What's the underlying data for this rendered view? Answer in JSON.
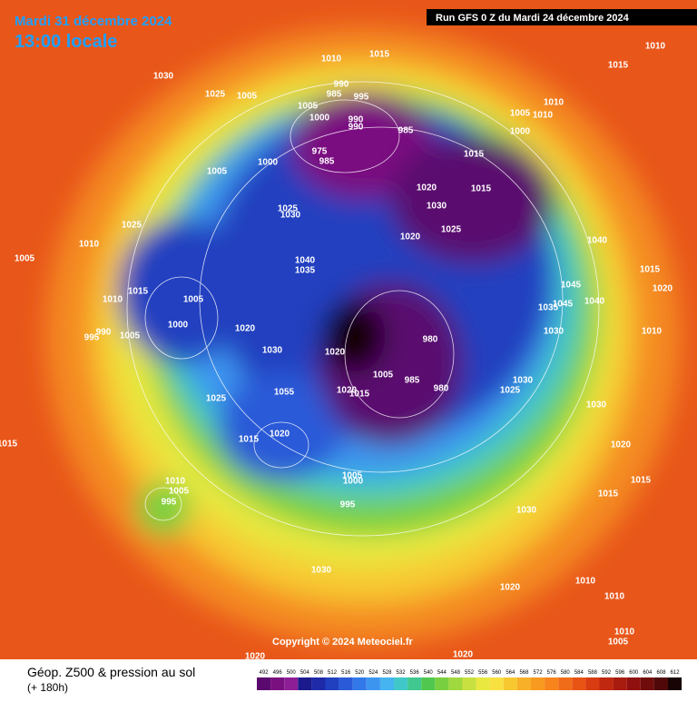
{
  "header": {
    "date": "Mardi 31 décembre 2024",
    "time": "13:00 locale",
    "run": "Run GFS 0 Z du Mardi 24 décembre 2024"
  },
  "footer": {
    "title": "Géop. Z500 & pression au sol",
    "lead": "(+ 180h)",
    "copyright": "Copyright © 2024 Meteociel.fr"
  },
  "legend": {
    "values": [
      492,
      496,
      500,
      504,
      508,
      512,
      516,
      520,
      524,
      528,
      532,
      536,
      540,
      544,
      548,
      552,
      556,
      560,
      564,
      568,
      572,
      576,
      580,
      584,
      588,
      592,
      596,
      600,
      604,
      608,
      612
    ],
    "colors": [
      "#5a0a6e",
      "#7a1080",
      "#8e1e96",
      "#1a1a8c",
      "#1e2aa8",
      "#2040c0",
      "#2a5ad8",
      "#3278e8",
      "#3c96f0",
      "#46b4f0",
      "#40c8c8",
      "#40c890",
      "#50c850",
      "#78d040",
      "#a0d840",
      "#c8e040",
      "#e8e840",
      "#f8e040",
      "#f8c830",
      "#f8b028",
      "#f89a20",
      "#f8841c",
      "#f06c18",
      "#e85414",
      "#d83c10",
      "#c02810",
      "#a81c10",
      "#901010",
      "#700c0c",
      "#500808",
      "#180404"
    ]
  },
  "isobar_labels": [
    1010,
    1015,
    990,
    985,
    995,
    1005,
    1000,
    990,
    990,
    985,
    975,
    985,
    1000,
    1005,
    1030,
    1025,
    1005,
    1010,
    1015,
    1010,
    1005,
    1010,
    1000,
    1015,
    1020,
    1015,
    1030,
    1025,
    1020,
    1040,
    1015,
    1020,
    1045,
    1045,
    1040,
    1035,
    1030,
    1010,
    1025,
    1010,
    1005,
    1015,
    1005,
    1010,
    1000,
    990,
    995,
    1005,
    1025,
    1030,
    1040,
    1035,
    1020,
    1030,
    1020,
    980,
    1005,
    985,
    980,
    1020,
    1015,
    1030,
    1025,
    1030,
    1025,
    1055,
    1015,
    1020,
    1015,
    1015,
    1020,
    1015,
    1010,
    1005,
    995,
    1005,
    1000,
    995,
    1030,
    1030,
    1020,
    1010,
    1010,
    1010,
    1005,
    1020,
    1020
  ]
}
